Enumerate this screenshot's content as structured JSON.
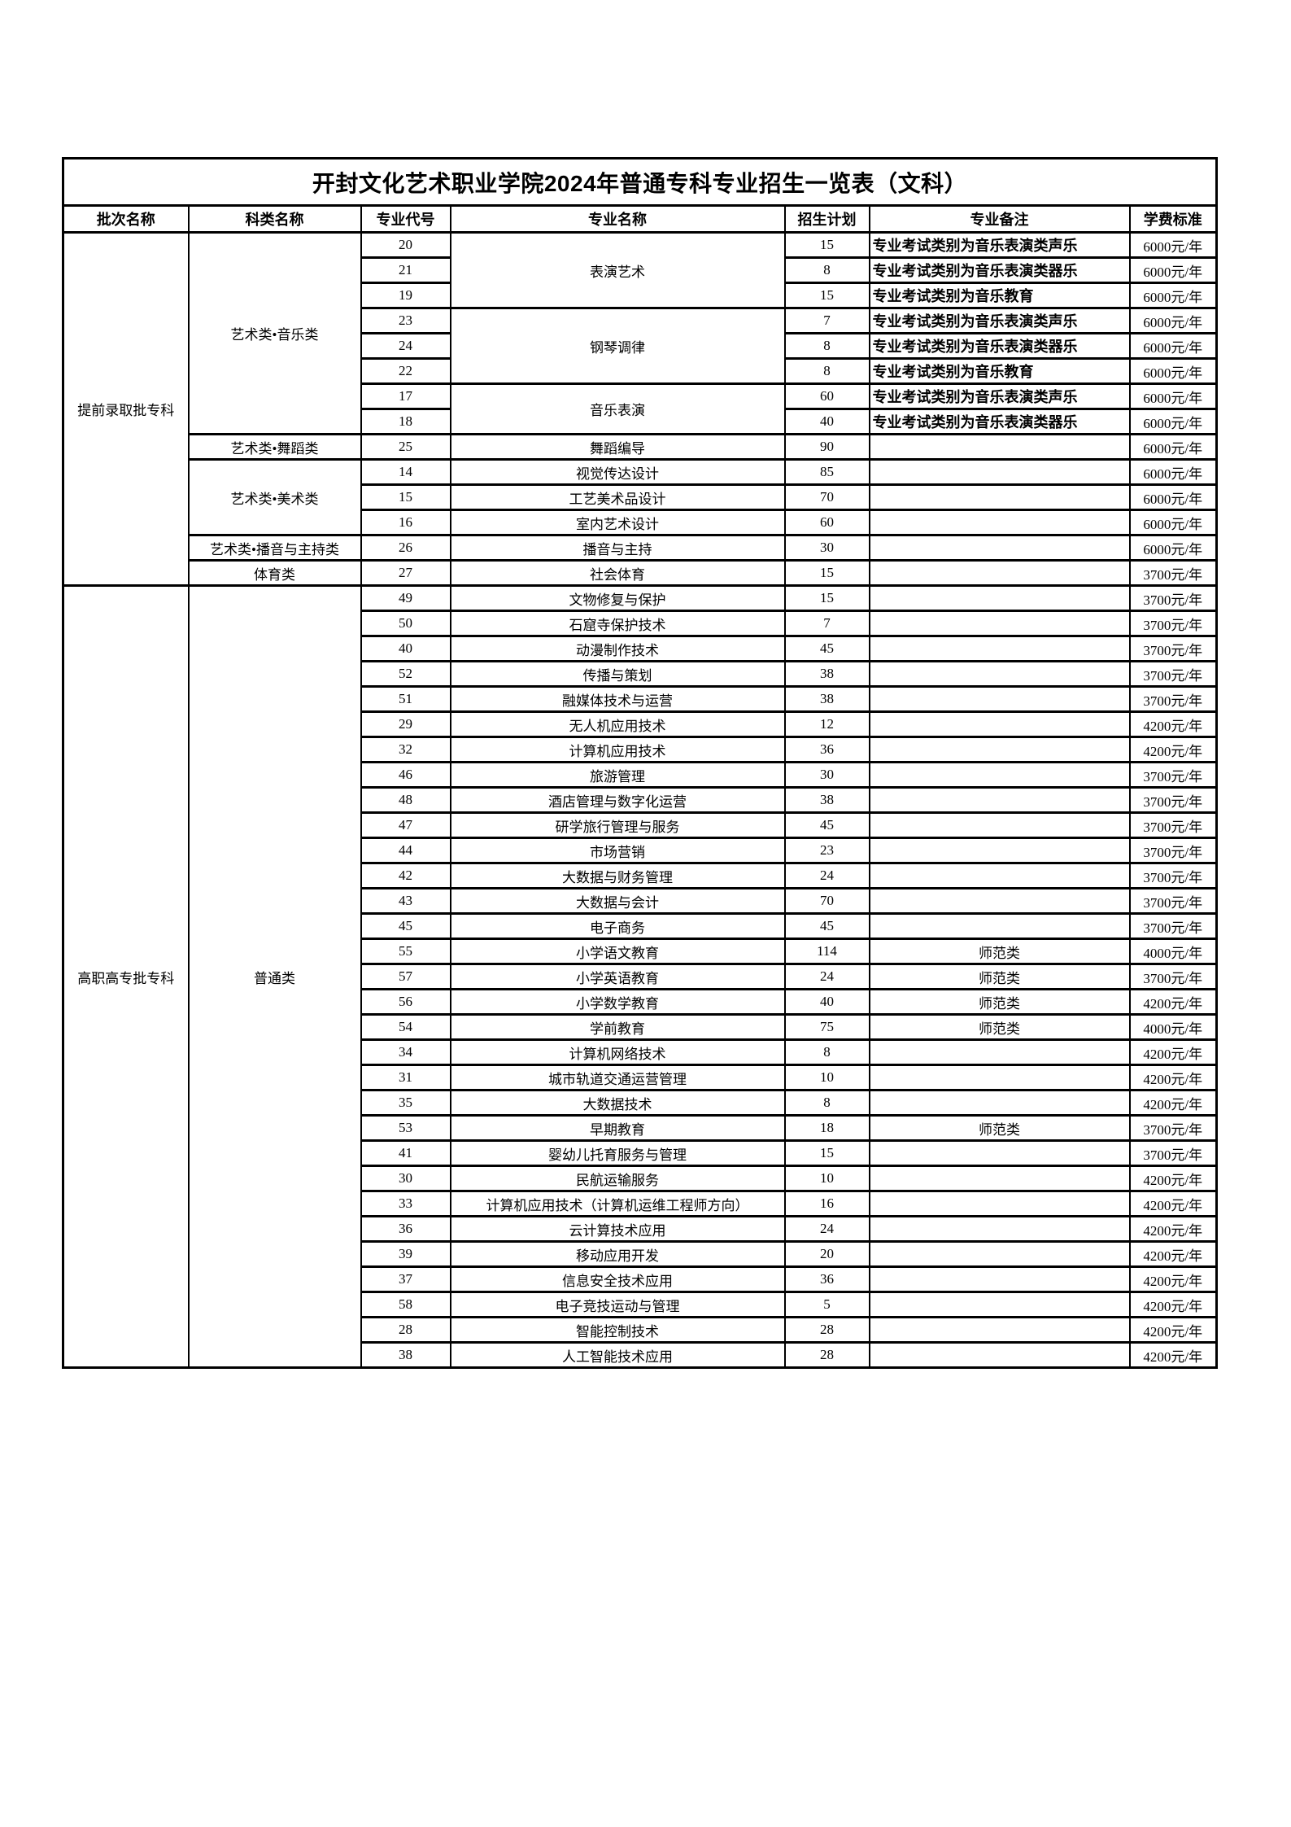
{
  "colors": {
    "text": "#000000",
    "border": "#000000",
    "background": "#ffffff"
  },
  "table": {
    "title": "开封文化艺术职业学院2024年普通专科专业招生一览表（文科）",
    "columns": [
      "批次名称",
      "科类名称",
      "专业代号",
      "专业名称",
      "招生计划",
      "专业备注",
      "学费标准"
    ],
    "batches": [
      {
        "name": "提前录取批专科",
        "categories": [
          {
            "name": "艺术类•音乐类",
            "majors": [
              {
                "name": "表演艺术",
                "entries": [
                  {
                    "code": "20",
                    "plan": "15",
                    "remark": "专业考试类别为音乐表演类声乐",
                    "remark_bold": true,
                    "fee": "6000元/年"
                  },
                  {
                    "code": "21",
                    "plan": "8",
                    "remark": "专业考试类别为音乐表演类器乐",
                    "remark_bold": true,
                    "fee": "6000元/年"
                  },
                  {
                    "code": "19",
                    "plan": "15",
                    "remark": "专业考试类别为音乐教育",
                    "remark_bold": true,
                    "fee": "6000元/年"
                  }
                ]
              },
              {
                "name": "钢琴调律",
                "entries": [
                  {
                    "code": "23",
                    "plan": "7",
                    "remark": "专业考试类别为音乐表演类声乐",
                    "remark_bold": true,
                    "fee": "6000元/年"
                  },
                  {
                    "code": "24",
                    "plan": "8",
                    "remark": "专业考试类别为音乐表演类器乐",
                    "remark_bold": true,
                    "fee": "6000元/年"
                  },
                  {
                    "code": "22",
                    "plan": "8",
                    "remark": "专业考试类别为音乐教育",
                    "remark_bold": true,
                    "fee": "6000元/年"
                  }
                ]
              },
              {
                "name": "音乐表演",
                "entries": [
                  {
                    "code": "17",
                    "plan": "60",
                    "remark": "专业考试类别为音乐表演类声乐",
                    "remark_bold": true,
                    "fee": "6000元/年"
                  },
                  {
                    "code": "18",
                    "plan": "40",
                    "remark": "专业考试类别为音乐表演类器乐",
                    "remark_bold": true,
                    "fee": "6000元/年"
                  }
                ]
              }
            ]
          },
          {
            "name": "艺术类•舞蹈类",
            "majors": [
              {
                "name": "舞蹈编导",
                "entries": [
                  {
                    "code": "25",
                    "plan": "90",
                    "remark": "",
                    "remark_bold": false,
                    "fee": "6000元/年"
                  }
                ]
              }
            ]
          },
          {
            "name": "艺术类•美术类",
            "majors": [
              {
                "name": "视觉传达设计",
                "entries": [
                  {
                    "code": "14",
                    "plan": "85",
                    "remark": "",
                    "remark_bold": false,
                    "fee": "6000元/年"
                  }
                ]
              },
              {
                "name": "工艺美术品设计",
                "entries": [
                  {
                    "code": "15",
                    "plan": "70",
                    "remark": "",
                    "remark_bold": false,
                    "fee": "6000元/年"
                  }
                ]
              },
              {
                "name": "室内艺术设计",
                "entries": [
                  {
                    "code": "16",
                    "plan": "60",
                    "remark": "",
                    "remark_bold": false,
                    "fee": "6000元/年"
                  }
                ]
              }
            ]
          },
          {
            "name": "艺术类•播音与主持类",
            "majors": [
              {
                "name": "播音与主持",
                "entries": [
                  {
                    "code": "26",
                    "plan": "30",
                    "remark": "",
                    "remark_bold": false,
                    "fee": "6000元/年"
                  }
                ]
              }
            ]
          },
          {
            "name": "体育类",
            "majors": [
              {
                "name": "社会体育",
                "entries": [
                  {
                    "code": "27",
                    "plan": "15",
                    "remark": "",
                    "remark_bold": false,
                    "fee": "3700元/年"
                  }
                ]
              }
            ]
          }
        ]
      },
      {
        "name": "高职高专批专科",
        "categories": [
          {
            "name": "普通类",
            "majors": [
              {
                "name": "文物修复与保护",
                "entries": [
                  {
                    "code": "49",
                    "plan": "15",
                    "remark": "",
                    "remark_bold": false,
                    "fee": "3700元/年"
                  }
                ]
              },
              {
                "name": "石窟寺保护技术",
                "entries": [
                  {
                    "code": "50",
                    "plan": "7",
                    "remark": "",
                    "remark_bold": false,
                    "fee": "3700元/年"
                  }
                ]
              },
              {
                "name": "动漫制作技术",
                "entries": [
                  {
                    "code": "40",
                    "plan": "45",
                    "remark": "",
                    "remark_bold": false,
                    "fee": "3700元/年"
                  }
                ]
              },
              {
                "name": "传播与策划",
                "entries": [
                  {
                    "code": "52",
                    "plan": "38",
                    "remark": "",
                    "remark_bold": false,
                    "fee": "3700元/年"
                  }
                ]
              },
              {
                "name": "融媒体技术与运营",
                "entries": [
                  {
                    "code": "51",
                    "plan": "38",
                    "remark": "",
                    "remark_bold": false,
                    "fee": "3700元/年"
                  }
                ]
              },
              {
                "name": "无人机应用技术",
                "entries": [
                  {
                    "code": "29",
                    "plan": "12",
                    "remark": "",
                    "remark_bold": false,
                    "fee": "4200元/年"
                  }
                ]
              },
              {
                "name": "计算机应用技术",
                "entries": [
                  {
                    "code": "32",
                    "plan": "36",
                    "remark": "",
                    "remark_bold": false,
                    "fee": "4200元/年"
                  }
                ]
              },
              {
                "name": "旅游管理",
                "entries": [
                  {
                    "code": "46",
                    "plan": "30",
                    "remark": "",
                    "remark_bold": false,
                    "fee": "3700元/年"
                  }
                ]
              },
              {
                "name": "酒店管理与数字化运营",
                "entries": [
                  {
                    "code": "48",
                    "plan": "38",
                    "remark": "",
                    "remark_bold": false,
                    "fee": "3700元/年"
                  }
                ]
              },
              {
                "name": "研学旅行管理与服务",
                "entries": [
                  {
                    "code": "47",
                    "plan": "45",
                    "remark": "",
                    "remark_bold": false,
                    "fee": "3700元/年"
                  }
                ]
              },
              {
                "name": "市场营销",
                "entries": [
                  {
                    "code": "44",
                    "plan": "23",
                    "remark": "",
                    "remark_bold": false,
                    "fee": "3700元/年"
                  }
                ]
              },
              {
                "name": "大数据与财务管理",
                "entries": [
                  {
                    "code": "42",
                    "plan": "24",
                    "remark": "",
                    "remark_bold": false,
                    "fee": "3700元/年"
                  }
                ]
              },
              {
                "name": "大数据与会计",
                "entries": [
                  {
                    "code": "43",
                    "plan": "70",
                    "remark": "",
                    "remark_bold": false,
                    "fee": "3700元/年"
                  }
                ]
              },
              {
                "name": "电子商务",
                "entries": [
                  {
                    "code": "45",
                    "plan": "45",
                    "remark": "",
                    "remark_bold": false,
                    "fee": "3700元/年"
                  }
                ]
              },
              {
                "name": "小学语文教育",
                "entries": [
                  {
                    "code": "55",
                    "plan": "114",
                    "remark": "师范类",
                    "remark_bold": false,
                    "fee": "4000元/年"
                  }
                ]
              },
              {
                "name": "小学英语教育",
                "entries": [
                  {
                    "code": "57",
                    "plan": "24",
                    "remark": "师范类",
                    "remark_bold": false,
                    "fee": "3700元/年"
                  }
                ]
              },
              {
                "name": "小学数学教育",
                "entries": [
                  {
                    "code": "56",
                    "plan": "40",
                    "remark": "师范类",
                    "remark_bold": false,
                    "fee": "4200元/年"
                  }
                ]
              },
              {
                "name": "学前教育",
                "entries": [
                  {
                    "code": "54",
                    "plan": "75",
                    "remark": "师范类",
                    "remark_bold": false,
                    "fee": "4000元/年"
                  }
                ]
              },
              {
                "name": "计算机网络技术",
                "entries": [
                  {
                    "code": "34",
                    "plan": "8",
                    "remark": "",
                    "remark_bold": false,
                    "fee": "4200元/年"
                  }
                ]
              },
              {
                "name": "城市轨道交通运营管理",
                "entries": [
                  {
                    "code": "31",
                    "plan": "10",
                    "remark": "",
                    "remark_bold": false,
                    "fee": "4200元/年"
                  }
                ]
              },
              {
                "name": "大数据技术",
                "entries": [
                  {
                    "code": "35",
                    "plan": "8",
                    "remark": "",
                    "remark_bold": false,
                    "fee": "4200元/年"
                  }
                ]
              },
              {
                "name": "早期教育",
                "entries": [
                  {
                    "code": "53",
                    "plan": "18",
                    "remark": "师范类",
                    "remark_bold": false,
                    "fee": "3700元/年"
                  }
                ]
              },
              {
                "name": "婴幼儿托育服务与管理",
                "entries": [
                  {
                    "code": "41",
                    "plan": "15",
                    "remark": "",
                    "remark_bold": false,
                    "fee": "3700元/年"
                  }
                ]
              },
              {
                "name": "民航运输服务",
                "entries": [
                  {
                    "code": "30",
                    "plan": "10",
                    "remark": "",
                    "remark_bold": false,
                    "fee": "4200元/年"
                  }
                ]
              },
              {
                "name": "计算机应用技术（计算机运维工程师方向）",
                "entries": [
                  {
                    "code": "33",
                    "plan": "16",
                    "remark": "",
                    "remark_bold": false,
                    "fee": "4200元/年"
                  }
                ]
              },
              {
                "name": "云计算技术应用",
                "entries": [
                  {
                    "code": "36",
                    "plan": "24",
                    "remark": "",
                    "remark_bold": false,
                    "fee": "4200元/年"
                  }
                ]
              },
              {
                "name": "移动应用开发",
                "entries": [
                  {
                    "code": "39",
                    "plan": "20",
                    "remark": "",
                    "remark_bold": false,
                    "fee": "4200元/年"
                  }
                ]
              },
              {
                "name": "信息安全技术应用",
                "entries": [
                  {
                    "code": "37",
                    "plan": "36",
                    "remark": "",
                    "remark_bold": false,
                    "fee": "4200元/年"
                  }
                ]
              },
              {
                "name": "电子竞技运动与管理",
                "entries": [
                  {
                    "code": "58",
                    "plan": "5",
                    "remark": "",
                    "remark_bold": false,
                    "fee": "4200元/年"
                  }
                ]
              },
              {
                "name": "智能控制技术",
                "entries": [
                  {
                    "code": "28",
                    "plan": "28",
                    "remark": "",
                    "remark_bold": false,
                    "fee": "4200元/年"
                  }
                ]
              },
              {
                "name": "人工智能技术应用",
                "entries": [
                  {
                    "code": "38",
                    "plan": "28",
                    "remark": "",
                    "remark_bold": false,
                    "fee": "4200元/年"
                  }
                ]
              }
            ]
          }
        ]
      }
    ]
  }
}
